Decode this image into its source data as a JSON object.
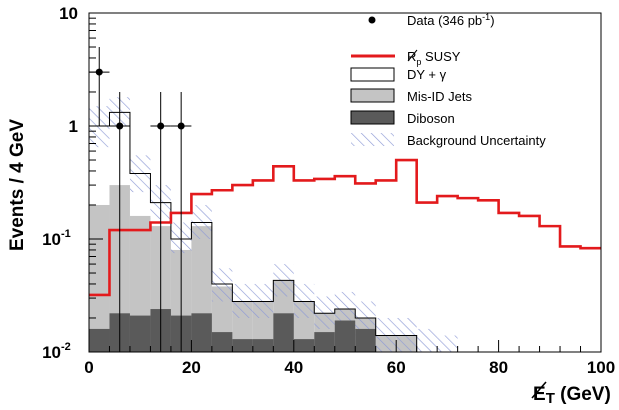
{
  "chart_data": {
    "type": "bar",
    "ylabel": "Events / 4 GeV",
    "xlabel_main": "E",
    "xlabel_sub": "T",
    "xlabel_unit": " (GeV)",
    "x_scale": "linear",
    "y_scale": "log",
    "xlim": [
      0,
      100
    ],
    "ylim": [
      0.01,
      10
    ],
    "x_ticks": [
      0,
      20,
      40,
      60,
      80,
      100
    ],
    "y_ticks": [
      {
        "value": 0.01,
        "base": "10",
        "exp": "-2"
      },
      {
        "value": 0.1,
        "base": "10",
        "exp": "-1"
      },
      {
        "value": 1,
        "base": "1",
        "exp": ""
      },
      {
        "value": 10,
        "base": "10",
        "exp": ""
      }
    ],
    "bin_edges": [
      0,
      4,
      8,
      12,
      16,
      20,
      24,
      28,
      32,
      36,
      40,
      44,
      48,
      52,
      56,
      60,
      64,
      68,
      72,
      76,
      80,
      84,
      88,
      92,
      96,
      100
    ],
    "series": [
      {
        "name": "Diboson",
        "kind": "filled",
        "color": "#5a5a5a",
        "values": [
          0.016,
          0.022,
          0.021,
          0.024,
          0.021,
          0.022,
          0.015,
          0.013,
          0.013,
          0.022,
          0.013,
          0.015,
          0.019,
          0.016,
          0.01,
          0.01,
          0.01,
          0.01,
          0.01,
          0.01,
          0.01,
          0.01,
          0.01,
          0.01,
          0.01
        ]
      },
      {
        "name": "Mis-ID Jets",
        "kind": "filled",
        "color": "#c4c4c4",
        "values": [
          0.2,
          0.3,
          0.16,
          0.13,
          0.08,
          0.13,
          0.038,
          0.028,
          0.028,
          0.043,
          0.028,
          0.022,
          0.024,
          0.02,
          0.014,
          0.014,
          0.01,
          0.01,
          0.01,
          0.01,
          0.01,
          0.01,
          0.01,
          0.01,
          0.01
        ]
      },
      {
        "name": "DY + γ",
        "kind": "outline",
        "color": "#000000",
        "values": [
          1.0,
          1.32,
          0.38,
          0.21,
          0.1,
          0.14,
          0.04,
          0.028,
          0.028,
          0.043,
          0.028,
          0.022,
          0.024,
          0.02,
          0.014,
          0.014,
          0.01,
          0.01,
          0.01,
          0.01,
          0.01,
          0.01,
          0.01,
          0.01,
          0.01
        ]
      },
      {
        "name": "SUSY",
        "kind": "line",
        "color": "#e31a1c",
        "values": [
          0.032,
          0.12,
          0.12,
          0.14,
          0.17,
          0.25,
          0.27,
          0.3,
          0.33,
          0.44,
          0.33,
          0.34,
          0.36,
          0.31,
          0.33,
          0.5,
          0.21,
          0.24,
          0.23,
          0.22,
          0.17,
          0.16,
          0.13,
          0.086,
          0.083
        ]
      }
    ],
    "uncertainty_band": {
      "name": "Background Uncertainty",
      "lower": [
        0.65,
        1.0,
        0.26,
        0.15,
        0.075,
        0.1,
        0.028,
        0.02,
        0.02,
        0.031,
        0.02,
        0.016,
        0.017,
        0.014,
        0.01,
        0.01,
        0.01,
        0.01,
        null,
        null,
        null,
        null,
        null,
        null,
        null
      ],
      "upper": [
        1.5,
        1.8,
        0.55,
        0.3,
        0.14,
        0.2,
        0.055,
        0.04,
        0.04,
        0.06,
        0.04,
        0.031,
        0.034,
        0.028,
        0.02,
        0.02,
        0.016,
        0.014,
        null,
        null,
        null,
        null,
        null,
        null,
        null
      ]
    },
    "data_points": {
      "name": "Data",
      "points": [
        {
          "x": 2,
          "y": 3.0,
          "ylo": 1.0,
          "yhi": 5.0
        },
        {
          "x": 6,
          "y": 1.0,
          "ylo": 0.01,
          "yhi": 2.0
        },
        {
          "x": 14,
          "y": 1.0,
          "ylo": 0.01,
          "yhi": 2.0
        },
        {
          "x": 18,
          "y": 1.0,
          "ylo": 0.01,
          "yhi": 2.0
        }
      ]
    },
    "legend": {
      "placement": "top-right",
      "data_text": "Data (346 pb",
      "data_sup": "-1",
      "data_close": ")",
      "susy_symbol": "R",
      "susy_sub": "p",
      "susy_text": " SUSY",
      "dy_text": "DY + γ",
      "misid_text": "Mis-ID Jets",
      "diboson_text": "Diboson",
      "unc_text": "Background Uncertainty"
    }
  }
}
